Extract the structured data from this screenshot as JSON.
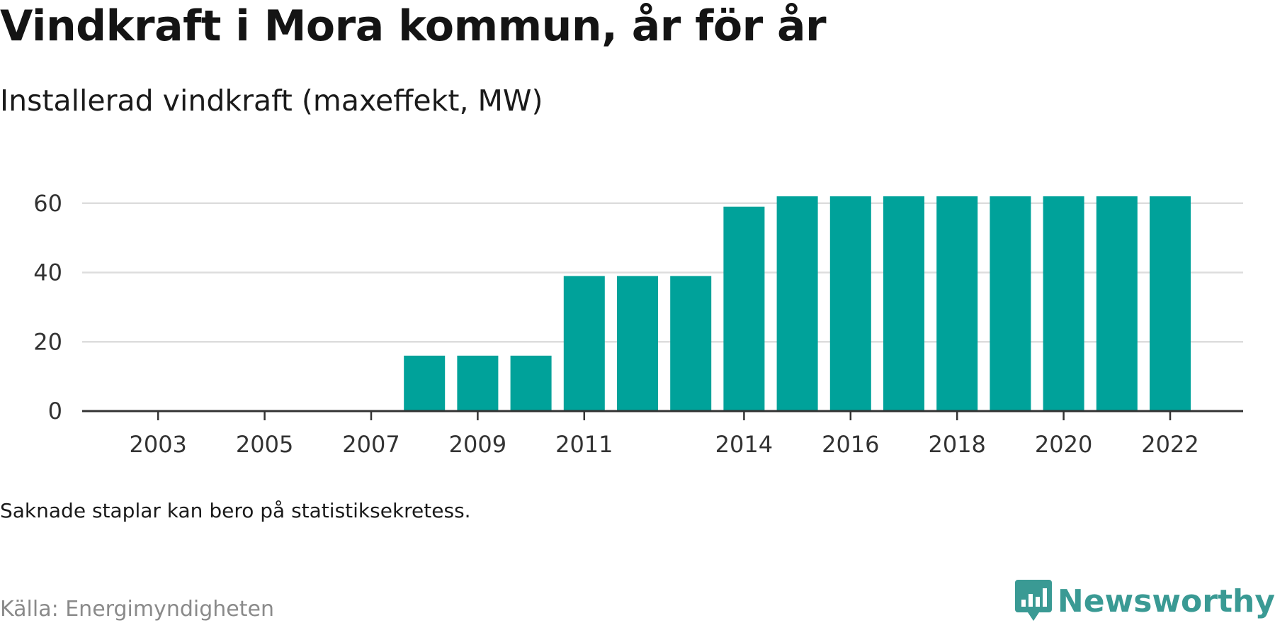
{
  "header": {
    "title": "Vindkraft i Mora kommun, år för år",
    "subtitle": "Installerad vindkraft (maxeffekt, MW)"
  },
  "footer": {
    "note": "Saknade staplar kan bero på statistiksekretess.",
    "source": "Källa: Energimyndigheten",
    "brand": "Newsworthy",
    "brand_color": "#3a9a94"
  },
  "chart_data": {
    "type": "bar",
    "title": "Vindkraft i Mora kommun, år för år",
    "subtitle": "Installerad vindkraft (maxeffekt, MW)",
    "categories": [
      2002,
      2003,
      2004,
      2005,
      2006,
      2007,
      2008,
      2009,
      2010,
      2011,
      2012,
      2013,
      2014,
      2015,
      2016,
      2017,
      2018,
      2019,
      2020,
      2021,
      2022
    ],
    "values": [
      null,
      null,
      null,
      null,
      null,
      null,
      16,
      16,
      16,
      39,
      39,
      39,
      59,
      62,
      62,
      62,
      62,
      62,
      62,
      62,
      62
    ],
    "x_tick_labels": [
      "2003",
      "2005",
      "2007",
      "2009",
      "2011",
      "2014",
      "2016",
      "2018",
      "2020",
      "2022"
    ],
    "y_ticks": [
      0,
      20,
      40,
      60
    ],
    "ylim": [
      0,
      62
    ],
    "grid": true,
    "bar_color": "#00a29a",
    "grid_color": "#dddddd"
  }
}
